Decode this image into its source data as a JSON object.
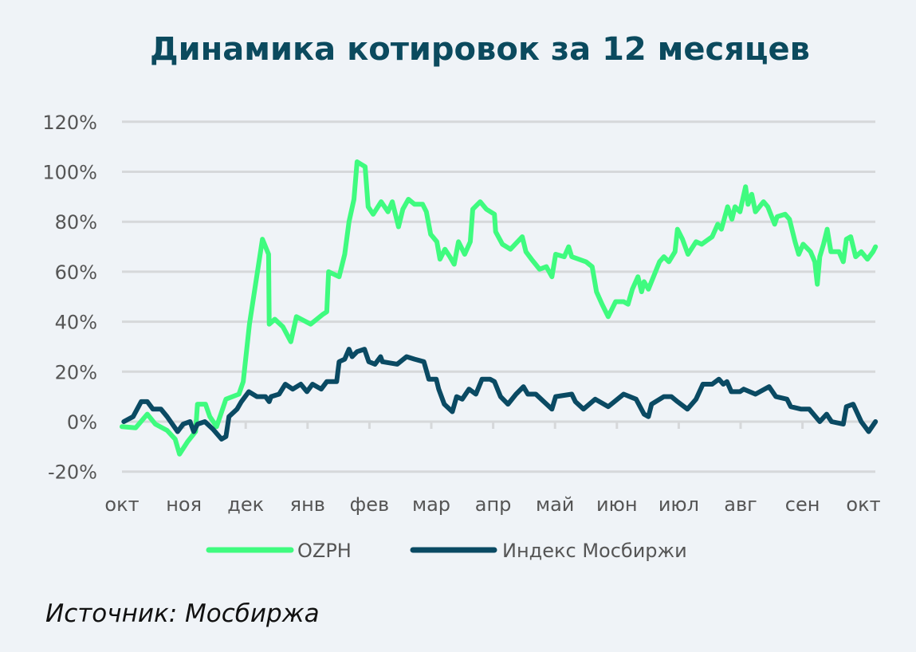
{
  "chart_data": {
    "type": "line",
    "title": "Динамика котировок за 12 месяцев",
    "xlabel": "",
    "ylabel": "",
    "x_unit": "months since start (0 = окт)",
    "ylim": [
      -20,
      120
    ],
    "yticks": [
      -20,
      0,
      20,
      40,
      60,
      80,
      100,
      120
    ],
    "ytick_labels": [
      "-20%",
      "0%",
      "20%",
      "40%",
      "60%",
      "80%",
      "100%",
      "120%"
    ],
    "xtick_labels": [
      "окт",
      "ноя",
      "дек",
      "янв",
      "фев",
      "мар",
      "апр",
      "май",
      "июн",
      "июл",
      "авг",
      "сен",
      "окт"
    ],
    "grid": "horizontal",
    "legend_position": "bottom",
    "colors": {
      "OZPH": "#3ffb7f",
      "index": "#0a4a63"
    },
    "series": [
      {
        "name": "OZPH",
        "points": [
          [
            0,
            -2
          ],
          [
            0.22,
            -2.5
          ],
          [
            0.41,
            3
          ],
          [
            0.54,
            -1
          ],
          [
            0.73,
            -3.5
          ],
          [
            0.86,
            -7
          ],
          [
            0.93,
            -13
          ],
          [
            1.06,
            -8
          ],
          [
            1.19,
            -4
          ],
          [
            1.22,
            7
          ],
          [
            1.35,
            7
          ],
          [
            1.42,
            2
          ],
          [
            1.53,
            -2
          ],
          [
            1.68,
            9
          ],
          [
            1.89,
            11
          ],
          [
            1.96,
            16
          ],
          [
            2.06,
            39
          ],
          [
            2.27,
            73
          ],
          [
            2.37,
            67
          ],
          [
            2.38,
            39
          ],
          [
            2.47,
            41
          ],
          [
            2.6,
            38
          ],
          [
            2.73,
            32
          ],
          [
            2.82,
            42
          ],
          [
            3.05,
            39
          ],
          [
            3.25,
            43
          ],
          [
            3.31,
            44
          ],
          [
            3.34,
            60
          ],
          [
            3.51,
            58
          ],
          [
            3.6,
            67
          ],
          [
            3.67,
            80
          ],
          [
            3.75,
            89
          ],
          [
            3.8,
            104
          ],
          [
            3.93,
            102
          ],
          [
            3.98,
            86
          ],
          [
            4.06,
            83
          ],
          [
            4.19,
            88
          ],
          [
            4.3,
            84
          ],
          [
            4.37,
            88
          ],
          [
            4.47,
            78
          ],
          [
            4.54,
            85
          ],
          [
            4.63,
            89
          ],
          [
            4.73,
            87
          ],
          [
            4.86,
            87
          ],
          [
            4.92,
            84
          ],
          [
            4.99,
            75
          ],
          [
            5.09,
            72
          ],
          [
            5.14,
            65
          ],
          [
            5.22,
            69
          ],
          [
            5.3,
            66
          ],
          [
            5.37,
            63
          ],
          [
            5.44,
            72
          ],
          [
            5.54,
            67
          ],
          [
            5.63,
            72
          ],
          [
            5.67,
            85
          ],
          [
            5.79,
            88
          ],
          [
            5.89,
            85
          ],
          [
            6.02,
            83
          ],
          [
            6.04,
            76
          ],
          [
            6.15,
            71
          ],
          [
            6.28,
            69
          ],
          [
            6.47,
            74
          ],
          [
            6.53,
            68
          ],
          [
            6.62,
            65
          ],
          [
            6.75,
            61
          ],
          [
            6.86,
            62
          ],
          [
            6.95,
            58
          ],
          [
            7.01,
            67
          ],
          [
            7.15,
            66
          ],
          [
            7.22,
            70
          ],
          [
            7.27,
            66
          ],
          [
            7.5,
            64
          ],
          [
            7.6,
            62
          ],
          [
            7.67,
            52
          ],
          [
            7.76,
            47
          ],
          [
            7.86,
            42
          ],
          [
            7.98,
            48
          ],
          [
            8.11,
            48
          ],
          [
            8.18,
            47
          ],
          [
            8.25,
            53
          ],
          [
            8.34,
            58
          ],
          [
            8.4,
            52
          ],
          [
            8.44,
            56
          ],
          [
            8.51,
            53
          ],
          [
            8.69,
            64
          ],
          [
            8.76,
            66
          ],
          [
            8.84,
            64
          ],
          [
            8.94,
            68
          ],
          [
            8.98,
            77
          ],
          [
            9.06,
            73
          ],
          [
            9.15,
            67
          ],
          [
            9.28,
            72
          ],
          [
            9.37,
            71
          ],
          [
            9.54,
            74
          ],
          [
            9.63,
            79
          ],
          [
            9.69,
            77
          ],
          [
            9.79,
            86
          ],
          [
            9.86,
            81
          ],
          [
            9.91,
            86
          ],
          [
            9.99,
            84
          ],
          [
            10.08,
            94
          ],
          [
            10.12,
            87
          ],
          [
            10.18,
            91
          ],
          [
            10.24,
            84
          ],
          [
            10.37,
            88
          ],
          [
            10.44,
            86
          ],
          [
            10.55,
            79
          ],
          [
            10.59,
            82
          ],
          [
            10.72,
            83
          ],
          [
            10.79,
            81
          ],
          [
            10.88,
            72
          ],
          [
            10.94,
            67
          ],
          [
            11.01,
            71
          ],
          [
            11.13,
            68
          ],
          [
            11.2,
            64
          ],
          [
            11.24,
            55
          ],
          [
            11.28,
            66
          ],
          [
            11.34,
            71
          ],
          [
            11.4,
            77
          ],
          [
            11.46,
            68
          ],
          [
            11.59,
            68
          ],
          [
            11.66,
            64
          ],
          [
            11.71,
            73
          ],
          [
            11.78,
            74
          ],
          [
            11.86,
            66
          ],
          [
            11.95,
            68
          ],
          [
            12.05,
            65
          ],
          [
            12.14,
            68
          ],
          [
            12.18,
            70
          ]
        ]
      },
      {
        "name": "Индекс Мосбиржи",
        "points": [
          [
            0.03,
            0
          ],
          [
            0.18,
            2
          ],
          [
            0.31,
            8
          ],
          [
            0.41,
            8
          ],
          [
            0.5,
            5
          ],
          [
            0.63,
            5
          ],
          [
            0.73,
            2
          ],
          [
            0.9,
            -4
          ],
          [
            0.99,
            -1
          ],
          [
            1.1,
            0
          ],
          [
            1.16,
            -4
          ],
          [
            1.22,
            -1
          ],
          [
            1.34,
            0
          ],
          [
            1.47,
            -3
          ],
          [
            1.61,
            -7
          ],
          [
            1.68,
            -6
          ],
          [
            1.73,
            2
          ],
          [
            1.86,
            5
          ],
          [
            1.93,
            8
          ],
          [
            2.05,
            12
          ],
          [
            2.18,
            10
          ],
          [
            2.32,
            10
          ],
          [
            2.38,
            8
          ],
          [
            2.41,
            10
          ],
          [
            2.54,
            11
          ],
          [
            2.64,
            15
          ],
          [
            2.76,
            13
          ],
          [
            2.89,
            15
          ],
          [
            2.99,
            12
          ],
          [
            3.08,
            15
          ],
          [
            3.22,
            13
          ],
          [
            3.31,
            16
          ],
          [
            3.47,
            16
          ],
          [
            3.51,
            24
          ],
          [
            3.6,
            25
          ],
          [
            3.67,
            29
          ],
          [
            3.72,
            26
          ],
          [
            3.8,
            28
          ],
          [
            3.92,
            29
          ],
          [
            3.99,
            24
          ],
          [
            4.09,
            23
          ],
          [
            4.18,
            26
          ],
          [
            4.21,
            24
          ],
          [
            4.45,
            23
          ],
          [
            4.6,
            26
          ],
          [
            4.73,
            25
          ],
          [
            4.88,
            24
          ],
          [
            4.96,
            17
          ],
          [
            5.08,
            17
          ],
          [
            5.12,
            13
          ],
          [
            5.21,
            7
          ],
          [
            5.34,
            4
          ],
          [
            5.41,
            10
          ],
          [
            5.5,
            9
          ],
          [
            5.61,
            13
          ],
          [
            5.72,
            11
          ],
          [
            5.82,
            17
          ],
          [
            5.95,
            17
          ],
          [
            6.02,
            16
          ],
          [
            6.12,
            10
          ],
          [
            6.24,
            7
          ],
          [
            6.37,
            11
          ],
          [
            6.49,
            14
          ],
          [
            6.56,
            11
          ],
          [
            6.69,
            11
          ],
          [
            6.82,
            8
          ],
          [
            6.95,
            5
          ],
          [
            7.01,
            10
          ],
          [
            7.27,
            11
          ],
          [
            7.33,
            8
          ],
          [
            7.46,
            5
          ],
          [
            7.65,
            9
          ],
          [
            7.86,
            6
          ],
          [
            8.11,
            11
          ],
          [
            8.31,
            9
          ],
          [
            8.44,
            3
          ],
          [
            8.51,
            2
          ],
          [
            8.56,
            7
          ],
          [
            8.76,
            10
          ],
          [
            8.88,
            10
          ],
          [
            8.98,
            8
          ],
          [
            9.14,
            5
          ],
          [
            9.28,
            9
          ],
          [
            9.39,
            15
          ],
          [
            9.54,
            15
          ],
          [
            9.65,
            17
          ],
          [
            9.72,
            15
          ],
          [
            9.78,
            16
          ],
          [
            9.85,
            12
          ],
          [
            9.99,
            12
          ],
          [
            10.05,
            13
          ],
          [
            10.24,
            11
          ],
          [
            10.46,
            14
          ],
          [
            10.57,
            10
          ],
          [
            10.75,
            9
          ],
          [
            10.81,
            6
          ],
          [
            10.98,
            5
          ],
          [
            11.11,
            5
          ],
          [
            11.28,
            0
          ],
          [
            11.39,
            3
          ],
          [
            11.47,
            0
          ],
          [
            11.66,
            -1
          ],
          [
            11.71,
            6
          ],
          [
            11.82,
            7
          ],
          [
            11.95,
            0
          ],
          [
            12.07,
            -4
          ],
          [
            12.18,
            0
          ]
        ]
      }
    ]
  },
  "legend": {
    "ozph": "OZPH",
    "index": "Индекс Мосбиржи"
  },
  "source": "Источник: Мосбиржа"
}
